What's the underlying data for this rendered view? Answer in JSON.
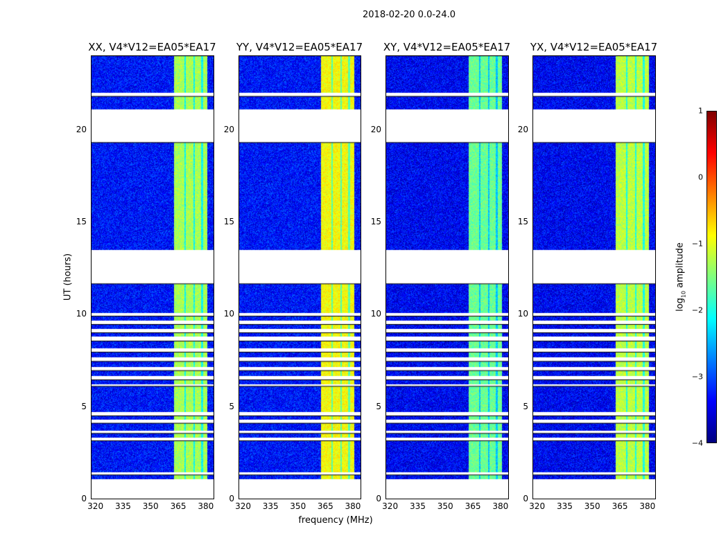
{
  "chart_data": {
    "type": "heatmap",
    "title": "2018-02-20 0.0-24.0",
    "xlabel": "frequency (MHz)",
    "ylabel": "UT (hours)",
    "xlim": [
      317.5,
      384.2
    ],
    "ylim": [
      0,
      24
    ],
    "xticks": [
      "320",
      "335",
      "350",
      "365",
      "380"
    ],
    "xtick_values": [
      320,
      335,
      350,
      365,
      380
    ],
    "yticks": [
      "0",
      "5",
      "10",
      "15",
      "20"
    ],
    "ytick_values": [
      0,
      5,
      10,
      15,
      20
    ],
    "colorbar": {
      "label": "log10 amplitude",
      "label_main": "log",
      "label_sub": "10",
      "label_rest": " amplitude",
      "colormap": "jet",
      "range": [
        -4,
        1
      ],
      "ticks": [
        "1",
        "0",
        "−1",
        "−2",
        "−3",
        "−4"
      ],
      "tick_values": [
        1,
        0,
        -1,
        -2,
        -3,
        -4
      ]
    },
    "time_segments_hours": [
      [
        1.05,
        1.3
      ],
      [
        1.45,
        3.15
      ],
      [
        3.3,
        3.55
      ],
      [
        3.7,
        4.1
      ],
      [
        4.3,
        4.5
      ],
      [
        4.7,
        6.1
      ],
      [
        6.2,
        6.45
      ],
      [
        6.65,
        6.95
      ],
      [
        7.15,
        7.45
      ],
      [
        7.65,
        7.95
      ],
      [
        8.15,
        8.55
      ],
      [
        8.8,
        9.0
      ],
      [
        9.2,
        9.45
      ],
      [
        9.65,
        9.9
      ],
      [
        10.05,
        11.65
      ],
      [
        13.5,
        19.3
      ],
      [
        21.1,
        21.8
      ],
      [
        22.0,
        24.0
      ]
    ],
    "bright_band_mhz": [
      362.5,
      380.5
    ],
    "band_gaps_mhz": [
      368.5,
      373.5,
      377.8
    ],
    "panels": [
      {
        "title": "XX, V4*V12=EA05*EA17",
        "background_level": -3.3,
        "band_level": -1.3
      },
      {
        "title": "YY, V4*V12=EA05*EA17",
        "background_level": -3.3,
        "band_level": -0.9
      },
      {
        "title": "XY, V4*V12=EA05*EA17",
        "background_level": -3.4,
        "band_level": -1.6
      },
      {
        "title": "YX, V4*V12=EA05*EA17",
        "background_level": -3.4,
        "band_level": -1.2
      }
    ]
  }
}
